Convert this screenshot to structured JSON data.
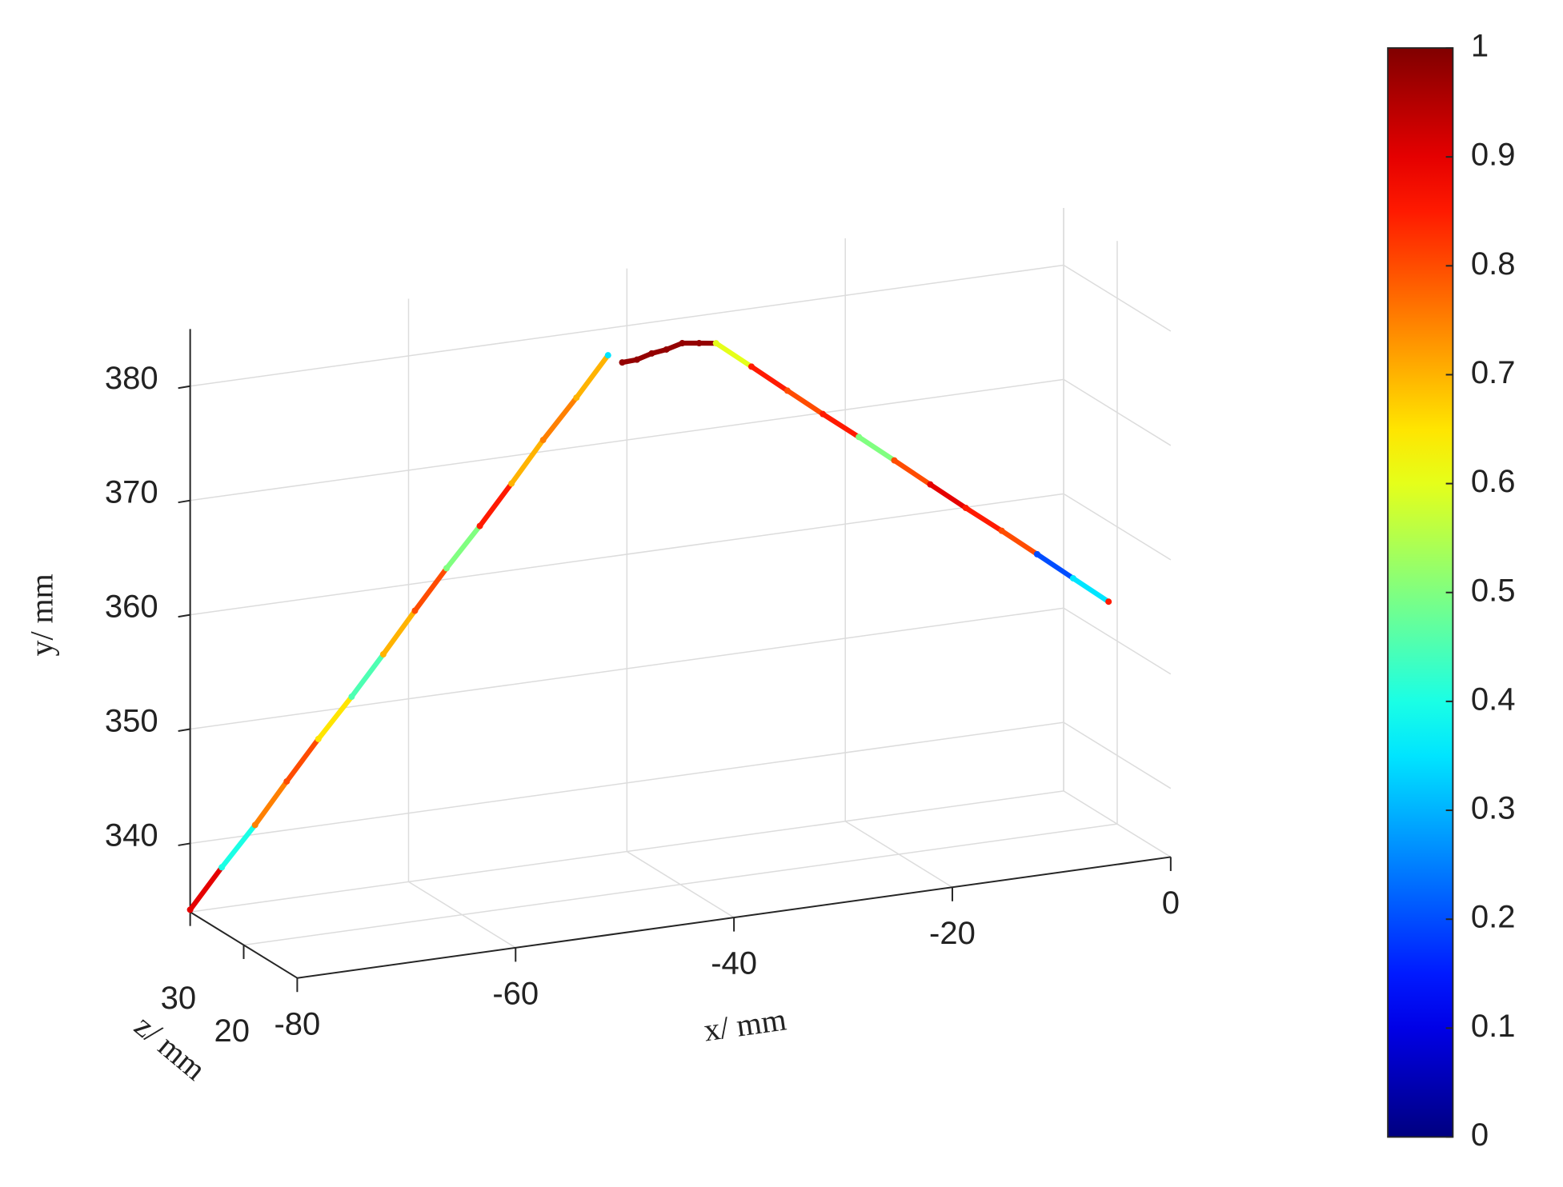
{
  "chart_data": {
    "type": "scatter3d",
    "xlabel": "x/ mm",
    "ylabel": "y/ mm",
    "zlabel": "z/ mm",
    "xlim": [
      -80,
      0
    ],
    "ylim": [
      334,
      385
    ],
    "zlim": [
      10,
      30
    ],
    "xticks": [
      -80,
      -60,
      -40,
      -20,
      0
    ],
    "yticks": [
      340,
      350,
      360,
      370,
      380
    ],
    "zticks": [
      20,
      30
    ],
    "grid": true,
    "colormap": "jet",
    "clim": [
      0,
      1
    ],
    "cticks": [
      0,
      0.1,
      0.2,
      0.3,
      0.4,
      0.5,
      0.6,
      0.7,
      0.8,
      0.9,
      1
    ],
    "x": [
      -80,
      -77.2,
      -74.3,
      -71.5,
      -68.7,
      -65.8,
      -63.0,
      -60.2,
      -57.4,
      -54.5,
      -51.7,
      -48.9,
      -46.0,
      -43.2,
      null,
      -41.9,
      -40.6,
      -39.3,
      -38.0,
      -36.6,
      -35.2,
      -33.8,
      -30.8,
      -27.7,
      -24.7,
      -21.6,
      -18.6,
      -15.5,
      -12.5,
      -9.4,
      -6.4,
      -3.3,
      -0.3
    ],
    "y": [
      334.2,
      337.6,
      341.0,
      344.5,
      347.9,
      351.3,
      354.7,
      358.2,
      361.6,
      365.0,
      368.4,
      371.9,
      375.3,
      378.7,
      null,
      377.9,
      378.0,
      378.4,
      378.6,
      379.0,
      378.9,
      378.8,
      376.5,
      374.1,
      371.8,
      369.5,
      367.2,
      364.8,
      362.5,
      360.2,
      357.9,
      355.5,
      353.2
    ],
    "z": [
      30,
      29.8,
      29.5,
      29.3,
      29.1,
      28.8,
      28.6,
      28.4,
      28.2,
      27.9,
      27.7,
      27.5,
      27.2,
      27,
      null,
      27,
      26.9,
      26.8,
      26.7,
      26.6,
      26.3,
      26,
      25.5,
      25.1,
      24.6,
      24.2,
      23.7,
      23.3,
      22.8,
      22.4,
      21.9,
      21.5,
      21
    ],
    "c": [
      0.9,
      0.4,
      0.75,
      0.8,
      0.65,
      0.45,
      0.7,
      0.8,
      0.5,
      0.85,
      0.7,
      0.75,
      0.7,
      0.35,
      null,
      0.98,
      0.98,
      0.98,
      0.98,
      0.98,
      0.98,
      0.6,
      0.85,
      0.8,
      0.85,
      0.5,
      0.8,
      0.9,
      0.85,
      0.8,
      0.2,
      0.35,
      0.85
    ]
  }
}
